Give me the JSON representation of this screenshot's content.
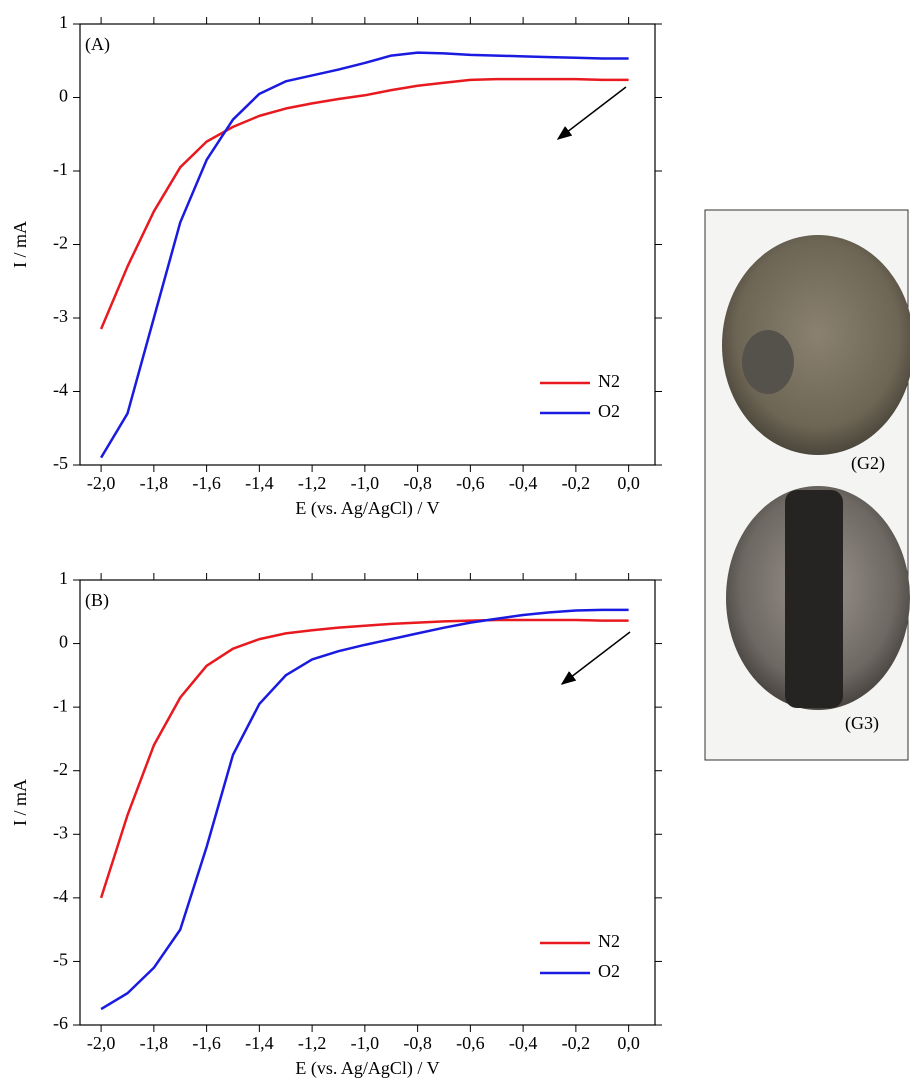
{
  "chart_data": [
    {
      "type": "line",
      "annotation": "(A)",
      "xlabel": "E (vs. Ag/AgCl) / V",
      "ylabel": "I / mA",
      "x": [
        -2.0,
        -1.9,
        -1.8,
        -1.7,
        -1.6,
        -1.5,
        -1.4,
        -1.3,
        -1.2,
        -1.1,
        -1.0,
        -0.9,
        -0.8,
        -0.7,
        -0.6,
        -0.5,
        -0.4,
        -0.3,
        -0.2,
        -0.1,
        0.0
      ],
      "series": [
        {
          "name": "N2",
          "color": "#e8191f",
          "values": [
            -3.15,
            -2.3,
            -1.55,
            -0.95,
            -0.6,
            -0.4,
            -0.25,
            -0.15,
            -0.08,
            -0.02,
            0.03,
            0.1,
            0.16,
            0.2,
            0.24,
            0.25,
            0.25,
            0.25,
            0.25,
            0.24,
            0.24
          ]
        },
        {
          "name": "O2",
          "color": "#1a1ae0",
          "values": [
            -4.9,
            -4.3,
            -3.0,
            -1.7,
            -0.85,
            -0.3,
            0.05,
            0.22,
            0.3,
            0.38,
            0.47,
            0.57,
            0.61,
            0.6,
            0.58,
            0.57,
            0.56,
            0.55,
            0.54,
            0.53,
            0.53
          ]
        }
      ],
      "xlim": [
        -2.08,
        0.1
      ],
      "xticks": [
        {
          "value": -2.0,
          "label": "-2,0"
        },
        {
          "value": -1.8,
          "label": "-1,8"
        },
        {
          "value": -1.6,
          "label": "-1,6"
        },
        {
          "value": -1.4,
          "label": "-1,4"
        },
        {
          "value": -1.2,
          "label": "-1,2"
        },
        {
          "value": -1.0,
          "label": "-1,0"
        },
        {
          "value": -0.8,
          "label": "-0,8"
        },
        {
          "value": -0.6,
          "label": "-0,6"
        },
        {
          "value": -0.4,
          "label": "-0,4"
        },
        {
          "value": -0.2,
          "label": "-0,2"
        },
        {
          "value": 0.0,
          "label": "0,0"
        }
      ],
      "ylim": [
        -5,
        1
      ],
      "yticks": [
        -5,
        -4,
        -3,
        -2,
        -1,
        0,
        1
      ],
      "legend": "lower right"
    },
    {
      "type": "line",
      "annotation": "(B)",
      "xlabel": "E (vs. Ag/AgCl) / V",
      "ylabel": "I / mA",
      "x": [
        -2.0,
        -1.9,
        -1.8,
        -1.7,
        -1.6,
        -1.5,
        -1.4,
        -1.3,
        -1.2,
        -1.1,
        -1.0,
        -0.9,
        -0.8,
        -0.7,
        -0.6,
        -0.5,
        -0.4,
        -0.3,
        -0.2,
        -0.1,
        0.0
      ],
      "series": [
        {
          "name": "N2",
          "color": "#e8191f",
          "values": [
            -4.0,
            -2.7,
            -1.6,
            -0.85,
            -0.35,
            -0.08,
            0.07,
            0.16,
            0.21,
            0.25,
            0.28,
            0.31,
            0.33,
            0.35,
            0.36,
            0.37,
            0.37,
            0.37,
            0.37,
            0.36,
            0.36
          ]
        },
        {
          "name": "O2",
          "color": "#1a1ae0",
          "values": [
            -5.75,
            -5.5,
            -5.1,
            -4.5,
            -3.2,
            -1.75,
            -0.95,
            -0.5,
            -0.25,
            -0.12,
            -0.02,
            0.07,
            0.16,
            0.25,
            0.33,
            0.39,
            0.45,
            0.49,
            0.52,
            0.53,
            0.53
          ]
        }
      ],
      "xlim": [
        -2.08,
        0.1
      ],
      "xticks": [
        {
          "value": -2.0,
          "label": "-2,0"
        },
        {
          "value": -1.8,
          "label": "-1,8"
        },
        {
          "value": -1.6,
          "label": "-1,6"
        },
        {
          "value": -1.4,
          "label": "-1,4"
        },
        {
          "value": -1.2,
          "label": "-1,2"
        },
        {
          "value": -1.0,
          "label": "-1,0"
        },
        {
          "value": -0.8,
          "label": "-0,8"
        },
        {
          "value": -0.6,
          "label": "-0,6"
        },
        {
          "value": -0.4,
          "label": "-0,4"
        },
        {
          "value": -0.2,
          "label": "-0,2"
        },
        {
          "value": 0.0,
          "label": "0,0"
        }
      ],
      "ylim": [
        -6,
        1
      ],
      "yticks": [
        -6,
        -5,
        -4,
        -3,
        -2,
        -1,
        0,
        1
      ],
      "legend": "lower right"
    }
  ],
  "photo": {
    "labels": [
      "(G2)",
      "(G3)"
    ]
  }
}
